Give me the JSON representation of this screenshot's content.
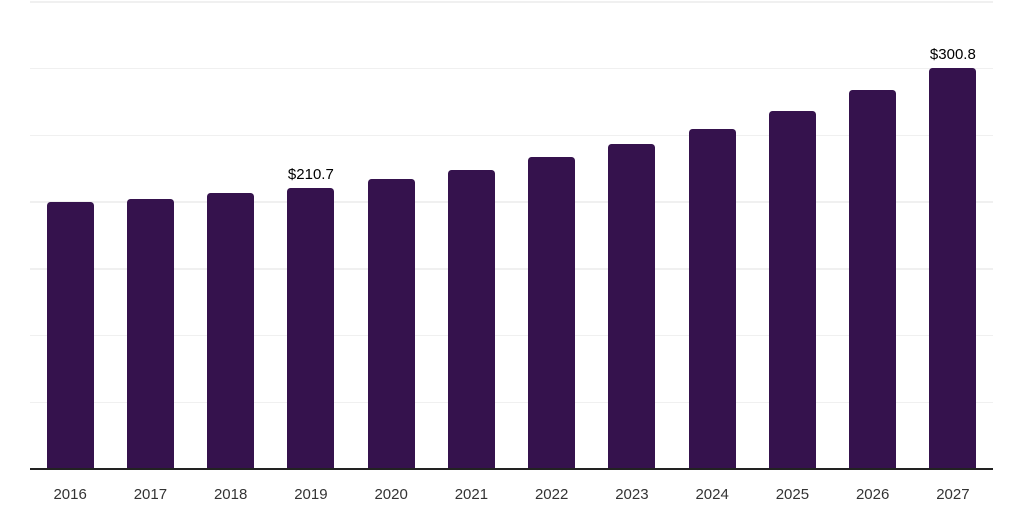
{
  "chart_data": {
    "type": "bar",
    "title": "",
    "xlabel": "",
    "ylabel": "",
    "categories": [
      "2016",
      "2017",
      "2018",
      "2019",
      "2020",
      "2021",
      "2022",
      "2023",
      "2024",
      "2025",
      "2026",
      "2027"
    ],
    "values": [
      200.0,
      202.3,
      206.5,
      210.7,
      217.0,
      224.0,
      233.5,
      243.5,
      255.0,
      268.0,
      283.7,
      300.8
    ],
    "point_labels": [
      "",
      "",
      "",
      "$210.7",
      "",
      "",
      "",
      "",
      "",
      "",
      "",
      "$300.8"
    ],
    "ylim": [
      0,
      350
    ],
    "gridline_step": 50,
    "grid": true,
    "legend": false,
    "bar_color": "#35124d",
    "gridline_color": "#f0f0f0",
    "axis_line_color": "#222222",
    "tick_label_color": "#333333",
    "data_label_color": "#000000",
    "background_color": "#ffffff"
  }
}
